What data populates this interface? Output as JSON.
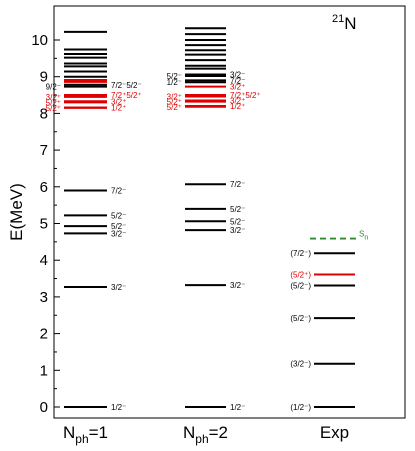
{
  "chart_data": {
    "type": "level-scheme",
    "ylabel": "E(MeV)",
    "ylim": [
      -0.3,
      10.5
    ],
    "yticks": [
      0,
      1,
      2,
      3,
      4,
      5,
      6,
      7,
      8,
      9,
      10
    ],
    "nucleus": {
      "mass": "21",
      "symbol": "N"
    },
    "colors": {
      "negative": "#000000",
      "positive": "#dd0000",
      "separation": "#2e8b2e"
    },
    "columns": [
      {
        "name": "Nph=1",
        "label_main": "N",
        "label_sub": "ph",
        "label_rest": "=1",
        "levels": [
          {
            "e": 0.0,
            "parity": "-",
            "label": "1/2⁻",
            "side": "right"
          },
          {
            "e": 3.27,
            "parity": "-",
            "label": "3/2⁻",
            "side": "right"
          },
          {
            "e": 4.73,
            "parity": "-",
            "label": "3/2⁻",
            "side": "right"
          },
          {
            "e": 4.93,
            "parity": "-",
            "label": "5/2⁻",
            "side": "right"
          },
          {
            "e": 5.22,
            "parity": "-",
            "label": "5/2⁻",
            "side": "right"
          },
          {
            "e": 5.9,
            "parity": "-",
            "label": "7/2⁻",
            "side": "right"
          },
          {
            "e": 8.15,
            "parity": "+",
            "label": "5/2⁺",
            "side": "left"
          },
          {
            "e": 8.16,
            "parity": "+",
            "label": "1/2⁺",
            "side": "right"
          },
          {
            "e": 8.3,
            "parity": "+",
            "label": "5/2⁺",
            "side": "left"
          },
          {
            "e": 8.33,
            "parity": "+",
            "label": "3/2⁺",
            "side": "right"
          },
          {
            "e": 8.45,
            "parity": "+",
            "label": "3/2⁺",
            "side": "left"
          },
          {
            "e": 8.5,
            "parity": "+",
            "label": "7/2⁺5/2⁺",
            "side": "right"
          },
          {
            "e": 8.73,
            "parity": "-",
            "label": "9/2⁻",
            "side": "left"
          },
          {
            "e": 8.78,
            "parity": "-",
            "label": "7/2⁻5/2⁻",
            "side": "right"
          },
          {
            "e": 8.86,
            "parity": "+",
            "label": "",
            "side": "right"
          },
          {
            "e": 8.91,
            "parity": "+",
            "label": "",
            "side": "right"
          },
          {
            "e": 9.0,
            "parity": "-",
            "label": "",
            "side": "right"
          },
          {
            "e": 9.14,
            "parity": "-",
            "label": "",
            "side": "right"
          },
          {
            "e": 9.28,
            "parity": "-",
            "label": "",
            "side": "right"
          },
          {
            "e": 9.36,
            "parity": "-",
            "label": "",
            "side": "right"
          },
          {
            "e": 9.52,
            "parity": "-",
            "label": "",
            "side": "right"
          },
          {
            "e": 9.62,
            "parity": "-",
            "label": "",
            "side": "right"
          },
          {
            "e": 9.74,
            "parity": "-",
            "label": "",
            "side": "right"
          },
          {
            "e": 10.22,
            "parity": "-",
            "label": "",
            "side": "right"
          }
        ]
      },
      {
        "name": "Nph=2",
        "label_main": "N",
        "label_sub": "ph",
        "label_rest": "=2",
        "levels": [
          {
            "e": 0.0,
            "parity": "-",
            "label": "1/2⁻",
            "side": "right"
          },
          {
            "e": 3.32,
            "parity": "-",
            "label": "3/2⁻",
            "side": "right"
          },
          {
            "e": 4.82,
            "parity": "-",
            "label": "3/2⁻",
            "side": "right"
          },
          {
            "e": 5.06,
            "parity": "-",
            "label": "5/2⁻",
            "side": "right"
          },
          {
            "e": 5.4,
            "parity": "-",
            "label": "5/2⁻",
            "side": "right"
          },
          {
            "e": 6.07,
            "parity": "-",
            "label": "7/2⁻",
            "side": "right"
          },
          {
            "e": 8.18,
            "parity": "+",
            "label": "5/2⁺",
            "side": "left"
          },
          {
            "e": 8.2,
            "parity": "+",
            "label": "1/2⁺",
            "side": "right"
          },
          {
            "e": 8.32,
            "parity": "+",
            "label": "5/2⁺",
            "side": "left"
          },
          {
            "e": 8.35,
            "parity": "+",
            "label": "3/2⁺",
            "side": "right"
          },
          {
            "e": 8.46,
            "parity": "+",
            "label": "3/2⁺",
            "side": "left"
          },
          {
            "e": 8.5,
            "parity": "+",
            "label": "7/2⁺5/2⁺",
            "side": "right"
          },
          {
            "e": 8.73,
            "parity": "+",
            "label": "3/2⁺",
            "side": "right"
          },
          {
            "e": 8.85,
            "parity": "-",
            "label": "1/2⁻",
            "side": "left"
          },
          {
            "e": 8.9,
            "parity": "-",
            "label": "7/2⁻",
            "side": "right"
          },
          {
            "e": 9.02,
            "parity": "-",
            "label": "5/2⁻",
            "side": "left"
          },
          {
            "e": 9.06,
            "parity": "-",
            "label": "3/2⁻",
            "side": "right"
          },
          {
            "e": 9.22,
            "parity": "-",
            "label": "",
            "side": "right"
          },
          {
            "e": 9.3,
            "parity": "-",
            "label": "",
            "side": "right"
          },
          {
            "e": 9.45,
            "parity": "-",
            "label": "",
            "side": "right"
          },
          {
            "e": 9.6,
            "parity": "-",
            "label": "",
            "side": "right"
          },
          {
            "e": 9.72,
            "parity": "-",
            "label": "",
            "side": "right"
          },
          {
            "e": 9.86,
            "parity": "-",
            "label": "",
            "side": "right"
          },
          {
            "e": 10.0,
            "parity": "-",
            "label": "",
            "side": "right"
          },
          {
            "e": 10.16,
            "parity": "-",
            "label": "",
            "side": "right"
          },
          {
            "e": 10.32,
            "parity": "-",
            "label": "",
            "side": "right"
          }
        ]
      },
      {
        "name": "Exp",
        "label_main": "Exp",
        "label_sub": "",
        "label_rest": "",
        "levels": [
          {
            "e": 0.0,
            "parity": "-",
            "label": "(1/2⁻)",
            "side": "left"
          },
          {
            "e": 1.18,
            "parity": "-",
            "label": "(3/2⁻)",
            "side": "left"
          },
          {
            "e": 2.42,
            "parity": "-",
            "label": "(5/2⁻)",
            "side": "left"
          },
          {
            "e": 3.31,
            "parity": "-",
            "label": "(5/2⁻)",
            "side": "left"
          },
          {
            "e": 3.61,
            "parity": "+",
            "label": "(5/2⁺)",
            "side": "left"
          },
          {
            "e": 4.19,
            "parity": "-",
            "label": "(7/2⁻)",
            "side": "left"
          },
          {
            "e": 4.59,
            "parity": "sn",
            "label": "S",
            "label_sub": "n",
            "side": "right",
            "dashed": true
          }
        ]
      }
    ]
  }
}
